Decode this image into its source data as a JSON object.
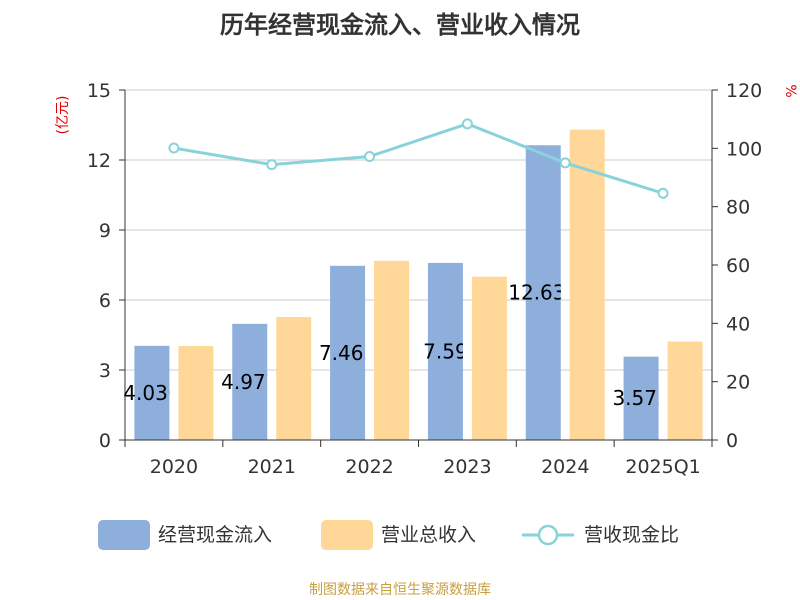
{
  "title": "历年经营现金流入、营业收入情况",
  "left_unit": "(亿元)",
  "right_unit": "%",
  "source": "制图数据来自恒生聚源数据库",
  "legend": [
    "经营现金流入",
    "营业总收入",
    "营收现金比"
  ],
  "colors": {
    "cash": "#8eaedb",
    "revenue": "#ffd899",
    "ratio": "#88d3d9",
    "unit": "#e00000",
    "source": "#c8a040"
  },
  "chart_data": {
    "type": "bar",
    "categories": [
      "2020",
      "2021",
      "2022",
      "2023",
      "2024",
      "2025Q1"
    ],
    "series": [
      {
        "name": "经营现金流入",
        "type": "bar",
        "axis": "left",
        "values": [
          4.036,
          4.977,
          7.465,
          7.59,
          12.633,
          3.572
        ],
        "labels": [
          "4.036",
          "4.977",
          "7.465",
          "7.59",
          "12.633",
          "3.572"
        ]
      },
      {
        "name": "营业总收入",
        "type": "bar",
        "axis": "left",
        "values": [
          4.03,
          5.27,
          7.68,
          7.0,
          13.3,
          4.22
        ]
      },
      {
        "name": "营收现金比",
        "type": "line",
        "axis": "right",
        "values": [
          100.1,
          94.4,
          97.2,
          108.4,
          95.0,
          84.6
        ]
      }
    ],
    "y_left": {
      "min": 0,
      "max": 15,
      "ticks": [
        0,
        3,
        6,
        9,
        12,
        15
      ]
    },
    "y_right": {
      "min": 0,
      "max": 120,
      "ticks": [
        0,
        20,
        40,
        60,
        80,
        100,
        120
      ]
    },
    "grid": true,
    "legend_position": "bottom"
  }
}
